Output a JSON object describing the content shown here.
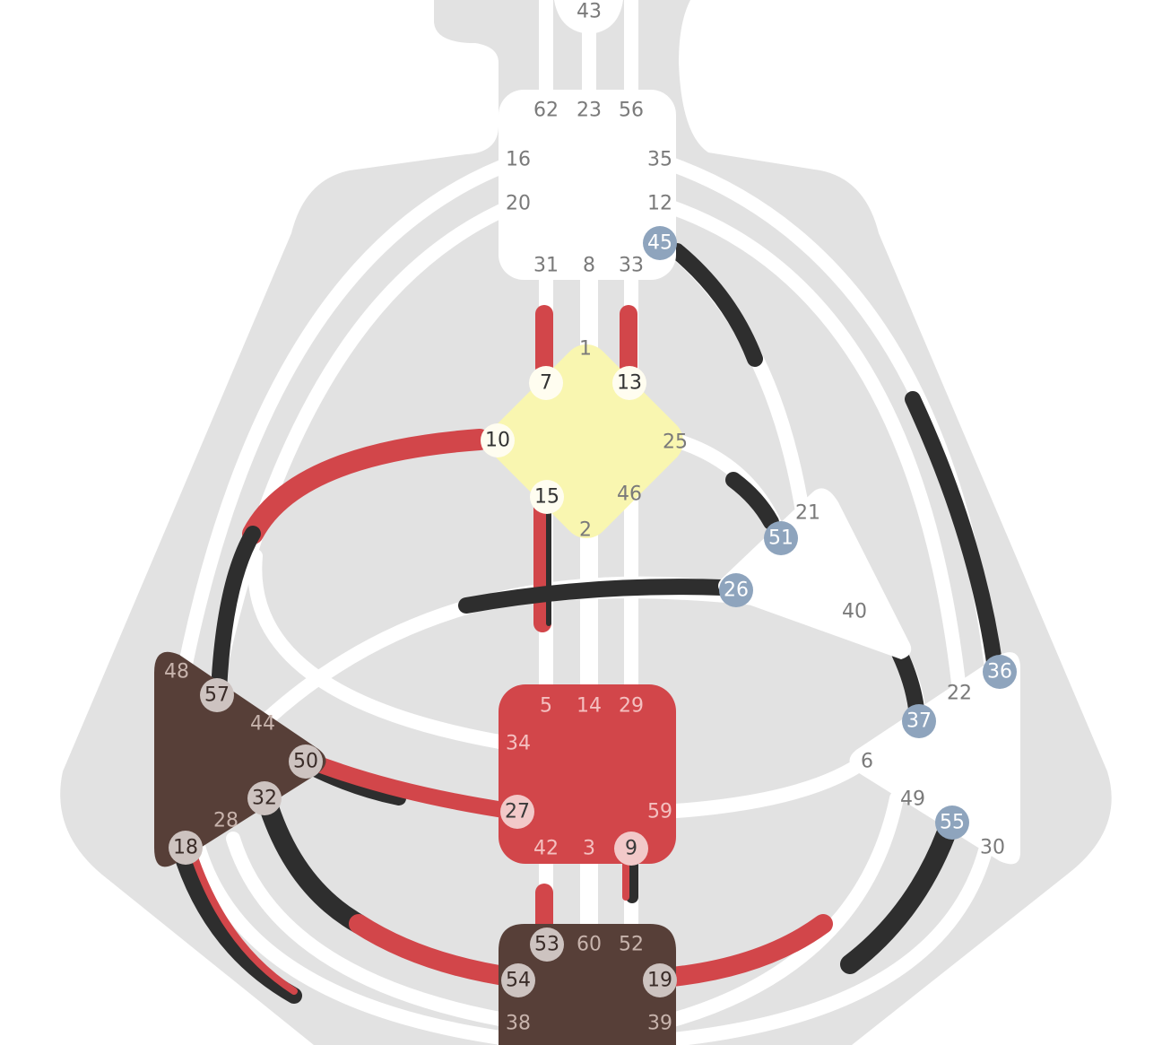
{
  "colors": {
    "silhouette": "#e2e2e2",
    "channel_open": "#ffffff",
    "design_red": "#d2464a",
    "personality_black": "#2e2e2e",
    "ajna_throat_head": "#ffffff",
    "g_center": "#f9f6b0",
    "sacral": "#d2464a",
    "spleen_root": "#573f38",
    "heart_solar": "#ffffff",
    "gate_text": "#7a7a7a",
    "gate_text_on_dark": "#c7b3ac",
    "gate_text_on_red": "#f4c0c0",
    "active_disc_design": "#f2c9c9",
    "active_disc_spleen": "#cdc3c0",
    "active_disc_heart": "#8ea4bd",
    "active_disc_g": "#fffdf0"
  },
  "gates": {
    "g43": "43",
    "g62": "62",
    "g23": "23",
    "g56": "56",
    "g16": "16",
    "g35": "35",
    "g20": "20",
    "g12": "12",
    "g45": "45",
    "g31": "31",
    "g8": "8",
    "g33": "33",
    "g1": "1",
    "g7": "7",
    "g13": "13",
    "g10": "10",
    "g25": "25",
    "g15": "15",
    "g46": "46",
    "g2": "2",
    "g21": "21",
    "g51": "51",
    "g26": "26",
    "g40": "40",
    "g36": "36",
    "g22": "22",
    "g37": "37",
    "g6": "6",
    "g49": "49",
    "g55": "55",
    "g30": "30",
    "g48": "48",
    "g57": "57",
    "g44": "44",
    "g50": "50",
    "g32": "32",
    "g28": "28",
    "g18": "18",
    "g5": "5",
    "g14": "14",
    "g29": "29",
    "g34": "34",
    "g27": "27",
    "g59": "59",
    "g42": "42",
    "g3": "3",
    "g9": "9",
    "g53": "53",
    "g60": "60",
    "g52": "52",
    "g54": "54",
    "g19": "19",
    "g38": "38",
    "g39": "39"
  }
}
